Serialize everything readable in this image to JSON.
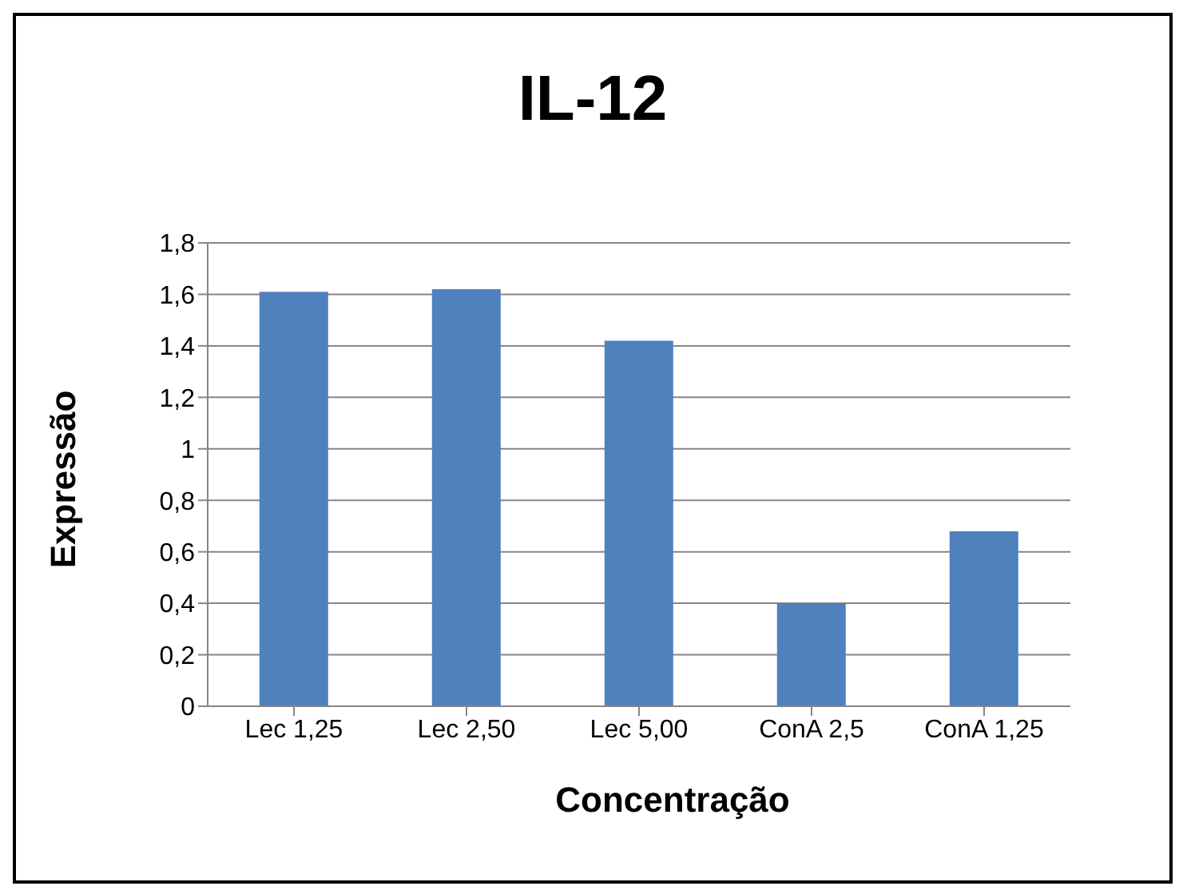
{
  "chart_data": {
    "type": "bar",
    "title": "IL-12",
    "xlabel": "Concentração",
    "ylabel": "Expressão",
    "categories": [
      "Lec 1,25",
      "Lec 2,50",
      "Lec 5,00",
      "ConA 2,5",
      "ConA 1,25"
    ],
    "values": [
      1.61,
      1.62,
      1.42,
      0.4,
      0.68
    ],
    "color": "#4f81bd",
    "ylim": [
      0,
      1.8
    ],
    "yticks": [
      0,
      {
        "value": 0.2,
        "label": "0,2"
      },
      {
        "value": 0.4,
        "label": "0,4"
      },
      {
        "value": 0.6,
        "label": "0,6"
      },
      {
        "value": 0.8,
        "label": "0,8"
      },
      1,
      {
        "value": 1.2,
        "label": "1,2"
      },
      {
        "value": 1.4,
        "label": "1,4"
      },
      {
        "value": 1.6,
        "label": "1,6"
      },
      {
        "value": 1.8,
        "label": "1,8"
      }
    ],
    "grid": "y",
    "legend": false
  }
}
